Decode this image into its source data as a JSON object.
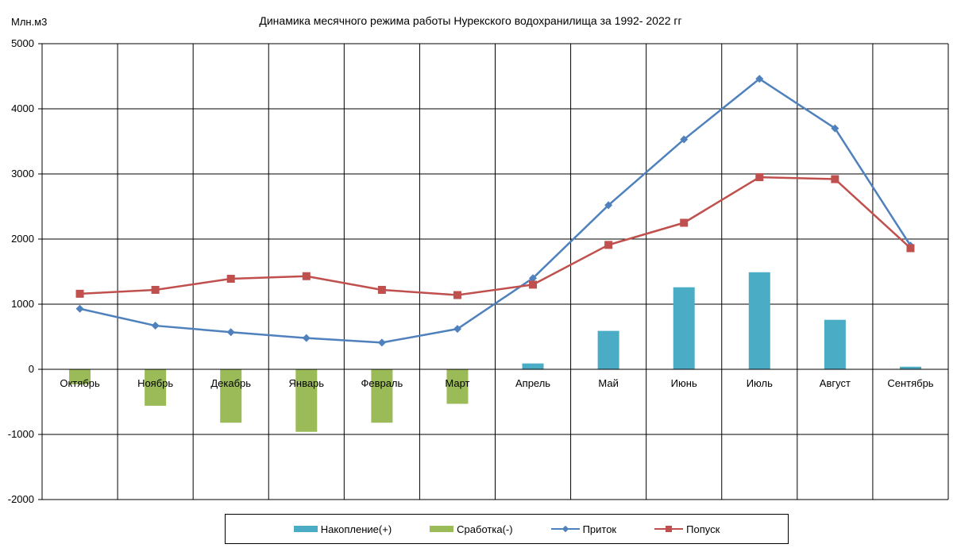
{
  "chart_data": {
    "type": "bar",
    "title": "Динамика  месячного режима работы Нурекского водохранилища  за 1992- 2022 гг",
    "ylabel": "Млн.м3",
    "ylim": [
      -2000,
      5000
    ],
    "yticks": [
      -2000,
      -1000,
      0,
      1000,
      2000,
      3000,
      4000,
      5000
    ],
    "grid": true,
    "legend_position": "bottom",
    "categories": [
      "Октябрь",
      "Ноябрь",
      "Декабрь",
      "Январь",
      "Февраль",
      "Март",
      "Апрель",
      "Май",
      "Июнь",
      "Июль",
      "Август",
      "Сентябрь"
    ],
    "series": [
      {
        "name": "Накопление(+)",
        "type": "bar",
        "color": "#4BACC6",
        "values": [
          0,
          0,
          0,
          0,
          0,
          0,
          90,
          590,
          1260,
          1490,
          760,
          40
        ]
      },
      {
        "name": "Сработка(-)",
        "type": "bar",
        "color": "#9BBB59",
        "values": [
          -230,
          -560,
          -820,
          -960,
          -820,
          -530,
          0,
          0,
          0,
          0,
          0,
          0
        ]
      },
      {
        "name": "Приток",
        "type": "line",
        "marker": "diamond",
        "color": "#4F81BD",
        "values": [
          930,
          670,
          570,
          480,
          410,
          620,
          1400,
          2520,
          3530,
          4460,
          3700,
          1900
        ]
      },
      {
        "name": "Попуск",
        "type": "line",
        "marker": "square",
        "color": "#C0504D",
        "values": [
          1160,
          1220,
          1390,
          1430,
          1220,
          1140,
          1300,
          1910,
          2250,
          2950,
          2920,
          1860
        ]
      }
    ]
  }
}
